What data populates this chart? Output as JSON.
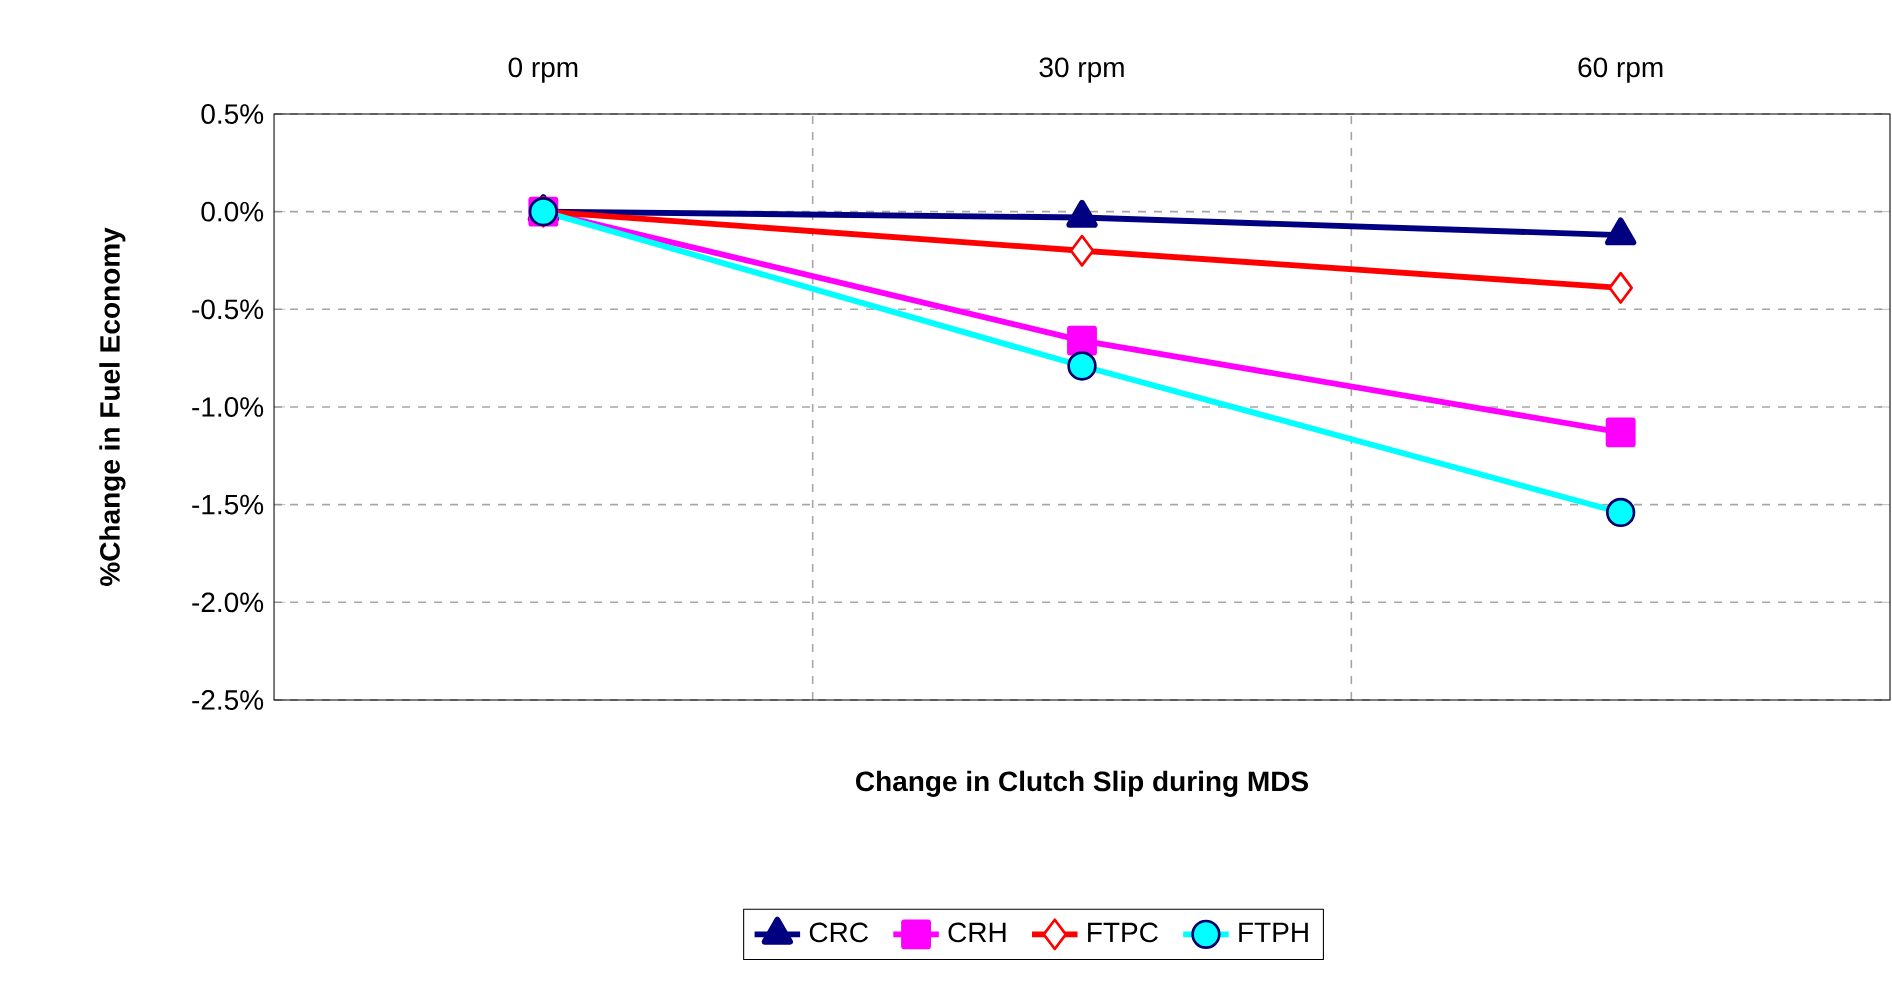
{
  "chart_data": {
    "type": "line",
    "xlabel": "Change in Clutch Slip during MDS",
    "ylabel": "%Change in Fuel Economy",
    "categories": [
      "0 rpm",
      "30 rpm",
      "60 rpm"
    ],
    "series": [
      {
        "name": "CRC",
        "color": "#000080",
        "marker": "triangle",
        "values": [
          0,
          -0.03,
          -0.12
        ]
      },
      {
        "name": "CRH",
        "color": "#ff00ff",
        "marker": "square",
        "values": [
          0,
          -0.66,
          -1.13
        ]
      },
      {
        "name": "FTPC",
        "color": "#ff0000",
        "marker": "diamond",
        "values": [
          0,
          -0.2,
          -0.39
        ]
      },
      {
        "name": "FTPH",
        "color": "#00ffff",
        "marker": "circle",
        "values": [
          0,
          -0.79,
          -1.54
        ]
      }
    ],
    "ylim": [
      -2.5,
      0.5
    ],
    "yticks": [
      {
        "value": 0.5,
        "label": "0.5%"
      },
      {
        "value": 0.0,
        "label": "0.0%"
      },
      {
        "value": -0.5,
        "label": "-0.5%"
      },
      {
        "value": -1.0,
        "label": "-1.0%"
      },
      {
        "value": -1.5,
        "label": "-1.5%"
      },
      {
        "value": -2.0,
        "label": "-2.0%"
      },
      {
        "value": -2.5,
        "label": "-2.5%"
      }
    ],
    "grid": true,
    "legend": "bottom",
    "line_style": "solid"
  }
}
